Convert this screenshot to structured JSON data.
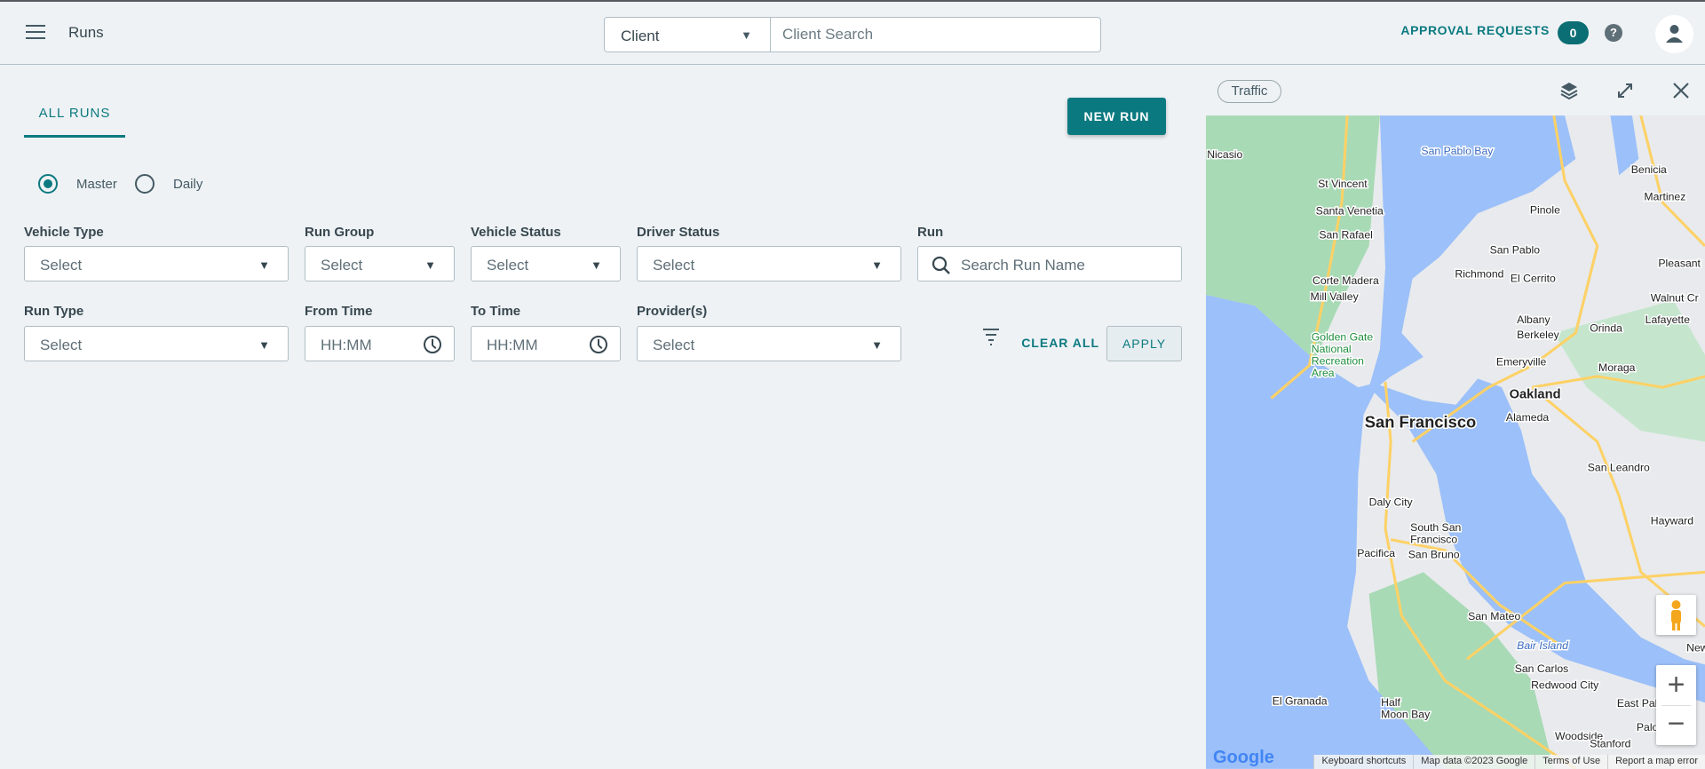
{
  "header": {
    "title": "Runs",
    "client_select": "Client",
    "client_search_placeholder": "Client Search",
    "approval_requests": "APPROVAL REQUESTS",
    "approval_count": "0",
    "help": "?"
  },
  "tabs": [
    {
      "label": "ALL RUNS",
      "active": true
    }
  ],
  "new_run": "NEW RUN",
  "mode": {
    "options": [
      "Master",
      "Daily"
    ],
    "selected": "Master"
  },
  "filters": {
    "vehicle_type": {
      "label": "Vehicle Type",
      "value": "Select"
    },
    "run_group": {
      "label": "Run Group",
      "value": "Select"
    },
    "vehicle_status": {
      "label": "Vehicle Status",
      "value": "Select"
    },
    "driver_status": {
      "label": "Driver Status",
      "value": "Select"
    },
    "run": {
      "label": "Run",
      "placeholder": "Search Run Name"
    },
    "run_type": {
      "label": "Run Type",
      "value": "Select"
    },
    "from_time": {
      "label": "From Time",
      "placeholder": "HH:MM"
    },
    "to_time": {
      "label": "To Time",
      "placeholder": "HH:MM"
    },
    "providers": {
      "label": "Provider(s)",
      "value": "Select"
    }
  },
  "clear_all": "CLEAR ALL",
  "apply": "APPLY",
  "map": {
    "traffic": "Traffic",
    "labels": [
      "San Pablo Bay",
      "Nicasio",
      "St Vincent",
      "Santa Venetia",
      "San Rafael",
      "Corte Madera",
      "Mill Valley",
      "Golden Gate National Recreation Area",
      "San Francisco",
      "Daly City",
      "South San Francisco",
      "San Bruno",
      "Pacifica",
      "San Mateo",
      "Bair Island",
      "El Granada",
      "San Carlos",
      "Redwood City",
      "Half Moon Bay",
      "Woodside",
      "Palo Alto",
      "Stanford",
      "Benicia",
      "Martinez",
      "Pinole",
      "San Pablo",
      "Richmond",
      "El Cerrito",
      "Albany",
      "Berkeley",
      "Emeryville",
      "Oakland",
      "Alameda",
      "Orinda",
      "Lafayette",
      "Moraga",
      "Pleasant",
      "Walnut Cr",
      "San Leandro",
      "Hayward",
      "East Palo A",
      "New"
    ],
    "footer": [
      "Keyboard shortcuts",
      "Map data ©2023 Google",
      "Terms of Use",
      "Report a map error"
    ],
    "logo": "Google",
    "colors": {
      "water": "#9cc0f9",
      "park": "#a8dab5",
      "land": "#e8eaed",
      "road": "#fdd166"
    }
  },
  "colors": {
    "accent": "#0b7a80"
  }
}
